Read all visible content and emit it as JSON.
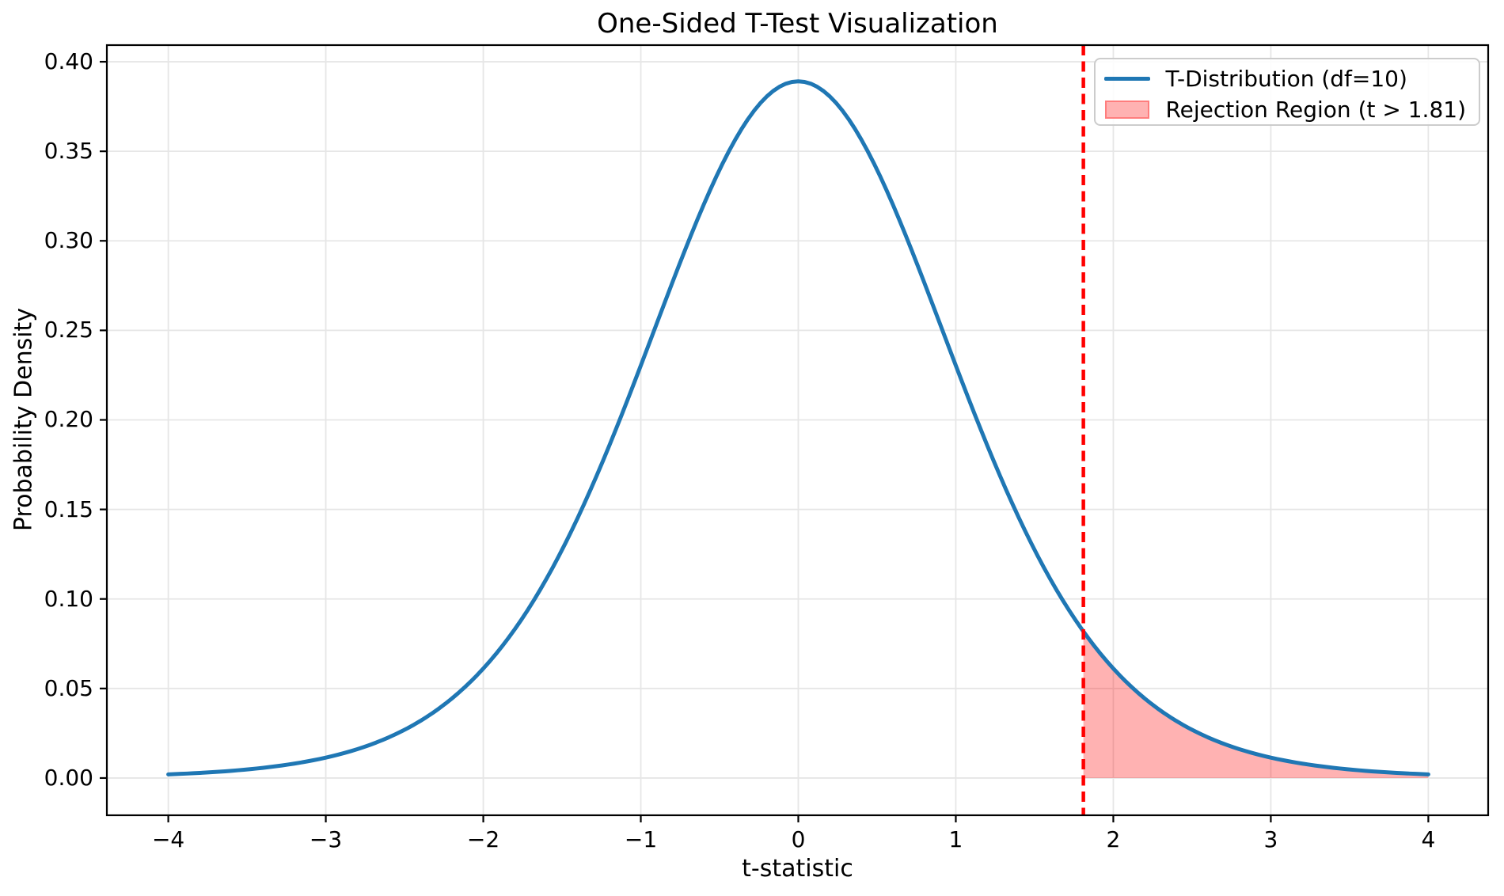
{
  "chart_data": {
    "type": "line",
    "title": "One-Sided T-Test Visualization",
    "xlabel": "t-statistic",
    "ylabel": "Probability Density",
    "xlim": [
      -4.39,
      4.38
    ],
    "ylim": [
      -0.0208,
      0.4093
    ],
    "xticks": [
      -4,
      -3,
      -2,
      -1,
      0,
      1,
      2,
      3,
      4
    ],
    "yticks": [
      0.0,
      0.05,
      0.1,
      0.15,
      0.2,
      0.25,
      0.3,
      0.35,
      0.4
    ],
    "grid": true,
    "grid_color": "#e6e6e6",
    "spine_color": "#000000",
    "background_color": "#ffffff",
    "series": [
      {
        "name": "T-Distribution (df=10)",
        "color": "#1f77b4",
        "distribution": "student-t",
        "df": 10,
        "pdf_peak": 0.3891,
        "x": [
          -4.0,
          -3.8,
          -3.6,
          -3.4,
          -3.2,
          -3.0,
          -2.8,
          -2.6,
          -2.4,
          -2.2,
          -2.0,
          -1.8,
          -1.6,
          -1.4,
          -1.2,
          -1.0,
          -0.8,
          -0.6,
          -0.4,
          -0.2,
          0.0,
          0.2,
          0.4,
          0.6,
          0.8,
          1.0,
          1.2,
          1.4,
          1.6,
          1.8,
          2.0,
          2.2,
          2.4,
          2.6,
          2.8,
          3.0,
          3.2,
          3.4,
          3.6,
          3.8,
          4.0
        ],
        "y": [
          0.002,
          0.0029,
          0.004,
          0.0057,
          0.0081,
          0.0114,
          0.0161,
          0.0227,
          0.0318,
          0.0444,
          0.0611,
          0.0831,
          0.1111,
          0.1454,
          0.1857,
          0.2304,
          0.2766,
          0.3203,
          0.3566,
          0.3806,
          0.3891,
          0.3806,
          0.3566,
          0.3203,
          0.2766,
          0.2304,
          0.1857,
          0.1454,
          0.1111,
          0.0831,
          0.0611,
          0.0444,
          0.0318,
          0.0227,
          0.0161,
          0.0114,
          0.0081,
          0.0057,
          0.004,
          0.0029,
          0.002
        ]
      }
    ],
    "critical_line": {
      "x": 1.81,
      "color": "#ff0000",
      "style": "dashed"
    },
    "rejection_region": {
      "x_from": 1.81,
      "x_to": 4.0,
      "fill_color": "rgba(255,0,0,0.3)"
    },
    "legend": {
      "position": "upper right",
      "items": [
        {
          "label": "T-Distribution (df=10)",
          "type": "line",
          "color": "#1f77b4"
        },
        {
          "label": "Rejection Region (t > 1.81)",
          "type": "patch",
          "fill": "#ffb2b2",
          "edge": "#ff7d7d"
        }
      ]
    }
  }
}
